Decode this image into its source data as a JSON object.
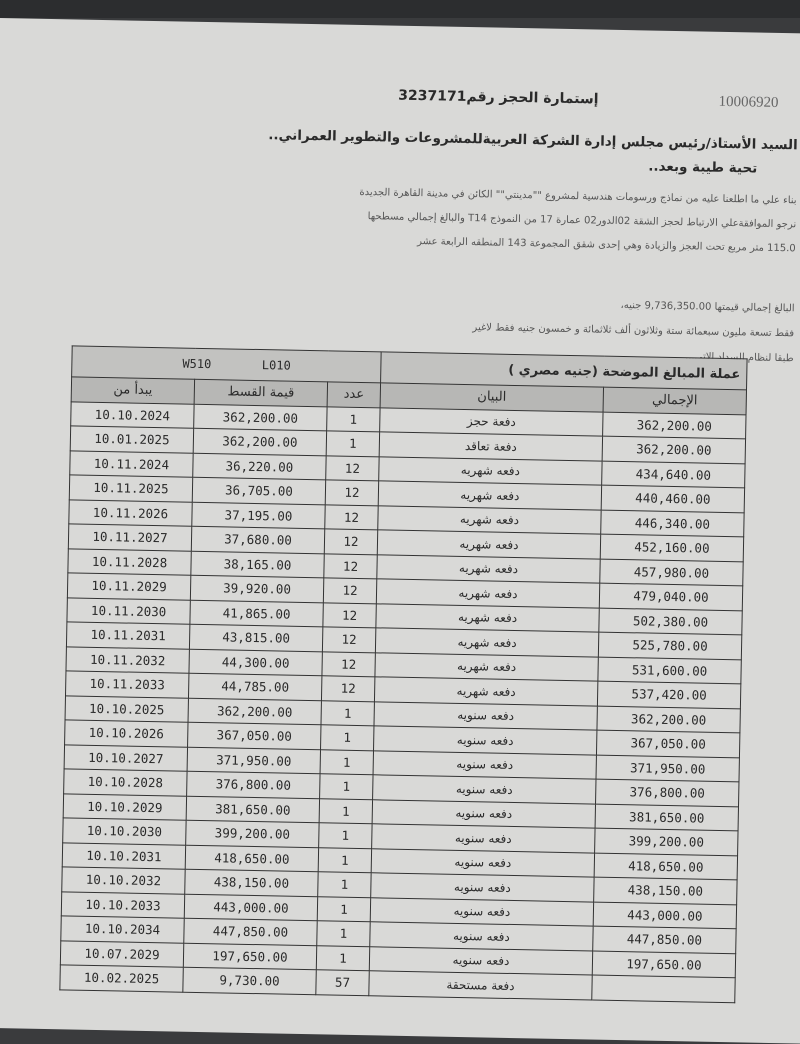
{
  "doc": {
    "ref_number": "10006920",
    "title": "إستمارة الحجز رقم3237171",
    "addressee": "السيد الأستاذ/رئيس مجلس إدارة الشركة العربيةللمشروعات والتطوير العمراني..",
    "greeting": "تحية طيبة وبعد..",
    "body_lines": [
      "بناء علي ما اطلعنا عليه من نماذج ورسومات هندسية لمشروع \"\"مدينتي\"\" الكائن في مدينة القاهرة الجديدة",
      "نرجو الموافقةعلي الارتباط لحجز الشقة 02الدور02 عمارة 17 من النموذج T14 والبالغ إجمالي مسطحها",
      "115.0 متر مربع تحت العجز والزيادة وهي إحدى شقق المجموعة 143 المنطقه الرابعة عشر"
    ],
    "total_line": "البالغ إجمالي قيمتها 9,736,350.00 جنيه،",
    "total_words": "فقط تسعة مليون سبعمائة ستة وثلاثون ألف ثلاثمائة و خمسون جنيه فقط لاغير",
    "payment_intro": "طبقا لنظام السداد الاتي..."
  },
  "table": {
    "currency_label": "عملة المبالغ الموضحة (جنيه مصري )",
    "code1": "W510",
    "code2": "L010",
    "headers": {
      "date": "يبدأ من",
      "amount": "قيمة القسط",
      "count": "عدد",
      "desc": "البيان",
      "total": "الإجمالي"
    },
    "rows": [
      {
        "date": "10.10.2024",
        "amount": "362,200.00",
        "count": "1",
        "desc": "دفعة حجز",
        "total": "362,200.00"
      },
      {
        "date": "10.01.2025",
        "amount": "362,200.00",
        "count": "1",
        "desc": "دفعة تعاقد",
        "total": "362,200.00"
      },
      {
        "date": "10.11.2024",
        "amount": "36,220.00",
        "count": "12",
        "desc": "دفعه شهريه",
        "total": "434,640.00"
      },
      {
        "date": "10.11.2025",
        "amount": "36,705.00",
        "count": "12",
        "desc": "دفعه شهريه",
        "total": "440,460.00"
      },
      {
        "date": "10.11.2026",
        "amount": "37,195.00",
        "count": "12",
        "desc": "دفعه شهريه",
        "total": "446,340.00"
      },
      {
        "date": "10.11.2027",
        "amount": "37,680.00",
        "count": "12",
        "desc": "دفعه شهريه",
        "total": "452,160.00"
      },
      {
        "date": "10.11.2028",
        "amount": "38,165.00",
        "count": "12",
        "desc": "دفعه شهريه",
        "total": "457,980.00"
      },
      {
        "date": "10.11.2029",
        "amount": "39,920.00",
        "count": "12",
        "desc": "دفعه شهريه",
        "total": "479,040.00"
      },
      {
        "date": "10.11.2030",
        "amount": "41,865.00",
        "count": "12",
        "desc": "دفعه شهريه",
        "total": "502,380.00"
      },
      {
        "date": "10.11.2031",
        "amount": "43,815.00",
        "count": "12",
        "desc": "دفعه شهريه",
        "total": "525,780.00"
      },
      {
        "date": "10.11.2032",
        "amount": "44,300.00",
        "count": "12",
        "desc": "دفعه شهريه",
        "total": "531,600.00"
      },
      {
        "date": "10.11.2033",
        "amount": "44,785.00",
        "count": "12",
        "desc": "دفعه شهريه",
        "total": "537,420.00"
      },
      {
        "date": "10.10.2025",
        "amount": "362,200.00",
        "count": "1",
        "desc": "دفعه سنويه",
        "total": "362,200.00"
      },
      {
        "date": "10.10.2026",
        "amount": "367,050.00",
        "count": "1",
        "desc": "دفعه سنويه",
        "total": "367,050.00"
      },
      {
        "date": "10.10.2027",
        "amount": "371,950.00",
        "count": "1",
        "desc": "دفعه سنويه",
        "total": "371,950.00"
      },
      {
        "date": "10.10.2028",
        "amount": "376,800.00",
        "count": "1",
        "desc": "دفعه سنويه",
        "total": "376,800.00"
      },
      {
        "date": "10.10.2029",
        "amount": "381,650.00",
        "count": "1",
        "desc": "دفعه سنويه",
        "total": "381,650.00"
      },
      {
        "date": "10.10.2030",
        "amount": "399,200.00",
        "count": "1",
        "desc": "دفعه سنويه",
        "total": "399,200.00"
      },
      {
        "date": "10.10.2031",
        "amount": "418,650.00",
        "count": "1",
        "desc": "دفعه سنويه",
        "total": "418,650.00"
      },
      {
        "date": "10.10.2032",
        "amount": "438,150.00",
        "count": "1",
        "desc": "دفعه سنويه",
        "total": "438,150.00"
      },
      {
        "date": "10.10.2033",
        "amount": "443,000.00",
        "count": "1",
        "desc": "دفعه سنويه",
        "total": "443,000.00"
      },
      {
        "date": "10.10.2034",
        "amount": "447,850.00",
        "count": "1",
        "desc": "دفعه سنويه",
        "total": "447,850.00"
      },
      {
        "date": "10.07.2029",
        "amount": "197,650.00",
        "count": "1",
        "desc": "دفعه سنويه",
        "total": "197,650.00"
      },
      {
        "date": "10.02.2025",
        "amount": "9,730.00",
        "count": "57",
        "desc": "دفعة مستحقة",
        "total": ""
      }
    ]
  }
}
